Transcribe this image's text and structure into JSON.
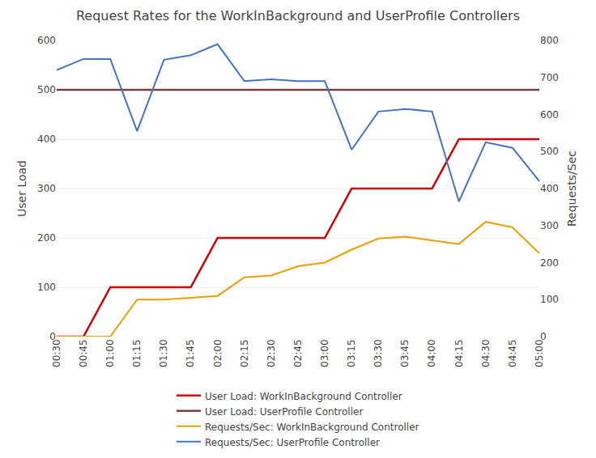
{
  "chart_data": {
    "type": "line",
    "title": "Request Rates for the WorkInBackground and UserProfile Controllers",
    "ylabel": "User Load",
    "y2label": "Requests/Sec",
    "categories": [
      "00:30",
      "00:45",
      "01:00",
      "01:15",
      "01:30",
      "01:45",
      "02:00",
      "02:15",
      "02:30",
      "02:45",
      "03:00",
      "03:15",
      "03:30",
      "03:45",
      "04:00",
      "04:15",
      "04:30",
      "04:45",
      "05:00"
    ],
    "series": [
      {
        "name": "User Load: WorkInBackground Controller",
        "color": "#cc0000",
        "values": [
          0,
          0,
          100,
          100,
          100,
          100,
          200,
          200,
          200,
          200,
          200,
          300,
          300,
          300,
          300,
          400,
          400,
          400,
          400
        ]
      },
      {
        "name": "User Load: UserProfile Controller",
        "color": "#7b3f3f",
        "values": [
          500,
          500,
          500,
          500,
          500,
          500,
          500,
          500,
          500,
          500,
          500,
          500,
          500,
          500,
          500,
          500,
          500,
          500,
          500
        ]
      },
      {
        "name": "Requests/Sec: WorkInBackground Controller",
        "color": "#e8a000",
        "axis": "y2",
        "values": [
          0,
          0,
          0,
          100,
          100,
          105,
          110,
          160,
          165,
          190,
          200,
          235,
          265,
          270,
          260,
          250,
          310,
          295,
          225
        ]
      },
      {
        "name": "Requests/Sec: UserProfile Controller",
        "color": "#4472c4",
        "axis": "y2",
        "values": [
          720,
          750,
          750,
          555,
          748,
          760,
          790,
          690,
          695,
          690,
          690,
          505,
          608,
          615,
          608,
          365,
          525,
          510,
          420
        ]
      }
    ],
    "ylim": [
      0,
      600
    ],
    "yticks": [
      0,
      100,
      200,
      300,
      400,
      500,
      600
    ],
    "y2lim": [
      0,
      800
    ],
    "y2ticks": [
      0,
      100,
      200,
      300,
      400,
      500,
      600,
      700,
      800
    ],
    "grid": true,
    "legend": "bottom"
  }
}
